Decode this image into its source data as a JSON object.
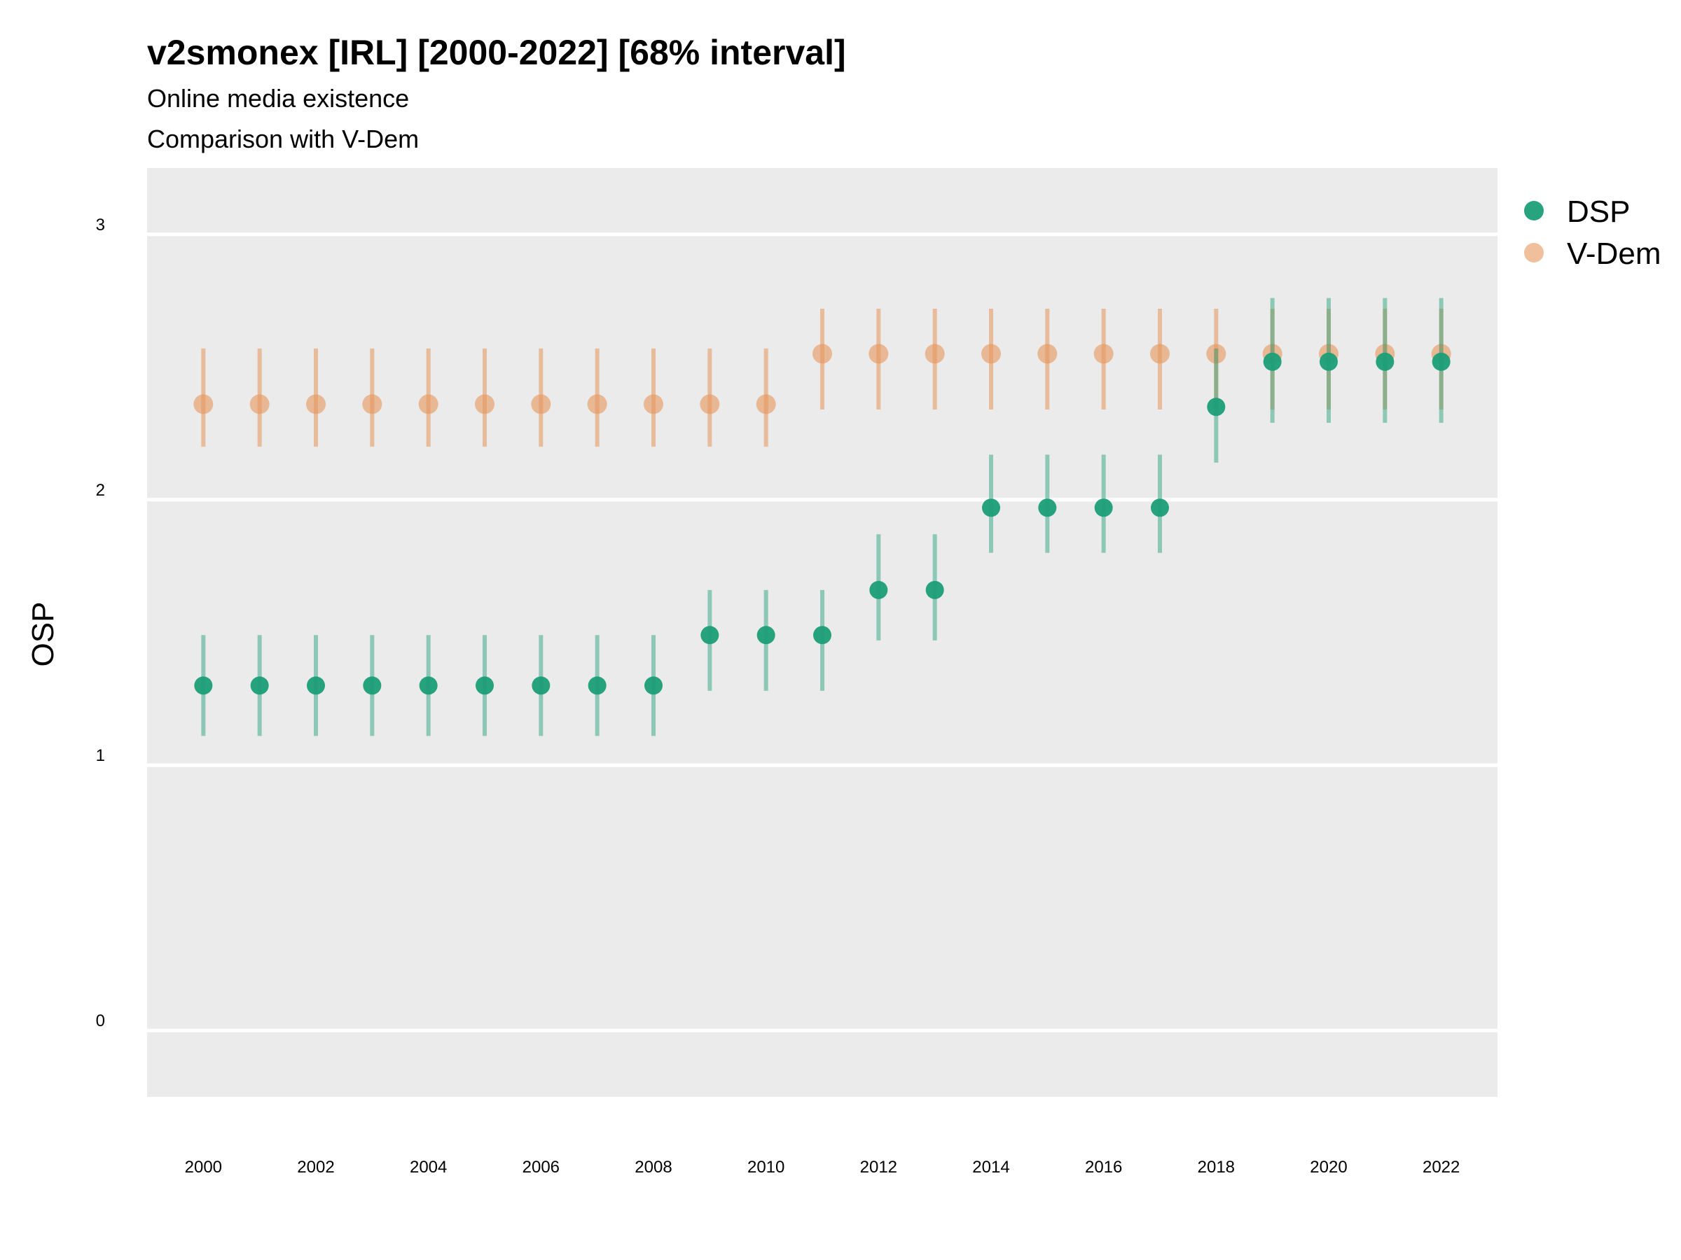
{
  "chart_data": {
    "type": "scatter",
    "title": "v2smonex [IRL] [2000-2022] [68% interval]",
    "subtitle_lines": [
      "Online media existence",
      "Comparison with V-Dem"
    ],
    "xlabel": "",
    "ylabel": "OSP",
    "xlim": [
      1999,
      2023
    ],
    "ylim": [
      -0.25,
      3.25
    ],
    "x_ticks": [
      "2000",
      "2002",
      "2004",
      "2006",
      "2008",
      "2010",
      "2012",
      "2014",
      "2016",
      "2018",
      "2020",
      "2022"
    ],
    "y_ticks": [
      "0",
      "1",
      "2",
      "3"
    ],
    "grid": true,
    "legend_position": "right-top",
    "x": [
      2000,
      2001,
      2002,
      2003,
      2004,
      2005,
      2006,
      2007,
      2008,
      2009,
      2010,
      2011,
      2012,
      2013,
      2014,
      2015,
      2016,
      2017,
      2018,
      2019,
      2020,
      2021,
      2022
    ],
    "series": [
      {
        "name": "V-Dem",
        "color": "#E6955A",
        "values": [
          2.36,
          2.36,
          2.36,
          2.36,
          2.36,
          2.36,
          2.36,
          2.36,
          2.36,
          2.36,
          2.36,
          2.55,
          2.55,
          2.55,
          2.55,
          2.55,
          2.55,
          2.55,
          2.55,
          2.55,
          2.55,
          2.55,
          2.55
        ],
        "lower": [
          2.2,
          2.2,
          2.2,
          2.2,
          2.2,
          2.2,
          2.2,
          2.2,
          2.2,
          2.2,
          2.2,
          2.34,
          2.34,
          2.34,
          2.34,
          2.34,
          2.34,
          2.34,
          2.34,
          2.34,
          2.34,
          2.34,
          2.34
        ],
        "upper": [
          2.57,
          2.57,
          2.57,
          2.57,
          2.57,
          2.57,
          2.57,
          2.57,
          2.57,
          2.57,
          2.57,
          2.72,
          2.72,
          2.72,
          2.72,
          2.72,
          2.72,
          2.72,
          2.72,
          2.72,
          2.72,
          2.72,
          2.72
        ]
      },
      {
        "name": "DSP",
        "color": "#1B9E77",
        "values": [
          1.3,
          1.3,
          1.3,
          1.3,
          1.3,
          1.3,
          1.3,
          1.3,
          1.3,
          1.49,
          1.49,
          1.49,
          1.66,
          1.66,
          1.97,
          1.97,
          1.97,
          1.97,
          2.35,
          2.52,
          2.52,
          2.52,
          2.52
        ],
        "lower": [
          1.11,
          1.11,
          1.11,
          1.11,
          1.11,
          1.11,
          1.11,
          1.11,
          1.11,
          1.28,
          1.28,
          1.28,
          1.47,
          1.47,
          1.8,
          1.8,
          1.8,
          1.8,
          2.14,
          2.29,
          2.29,
          2.29,
          2.29
        ],
        "upper": [
          1.49,
          1.49,
          1.49,
          1.49,
          1.49,
          1.49,
          1.49,
          1.49,
          1.49,
          1.66,
          1.66,
          1.66,
          1.87,
          1.87,
          2.17,
          2.17,
          2.17,
          2.17,
          2.57,
          2.76,
          2.76,
          2.76,
          2.76
        ]
      }
    ]
  }
}
